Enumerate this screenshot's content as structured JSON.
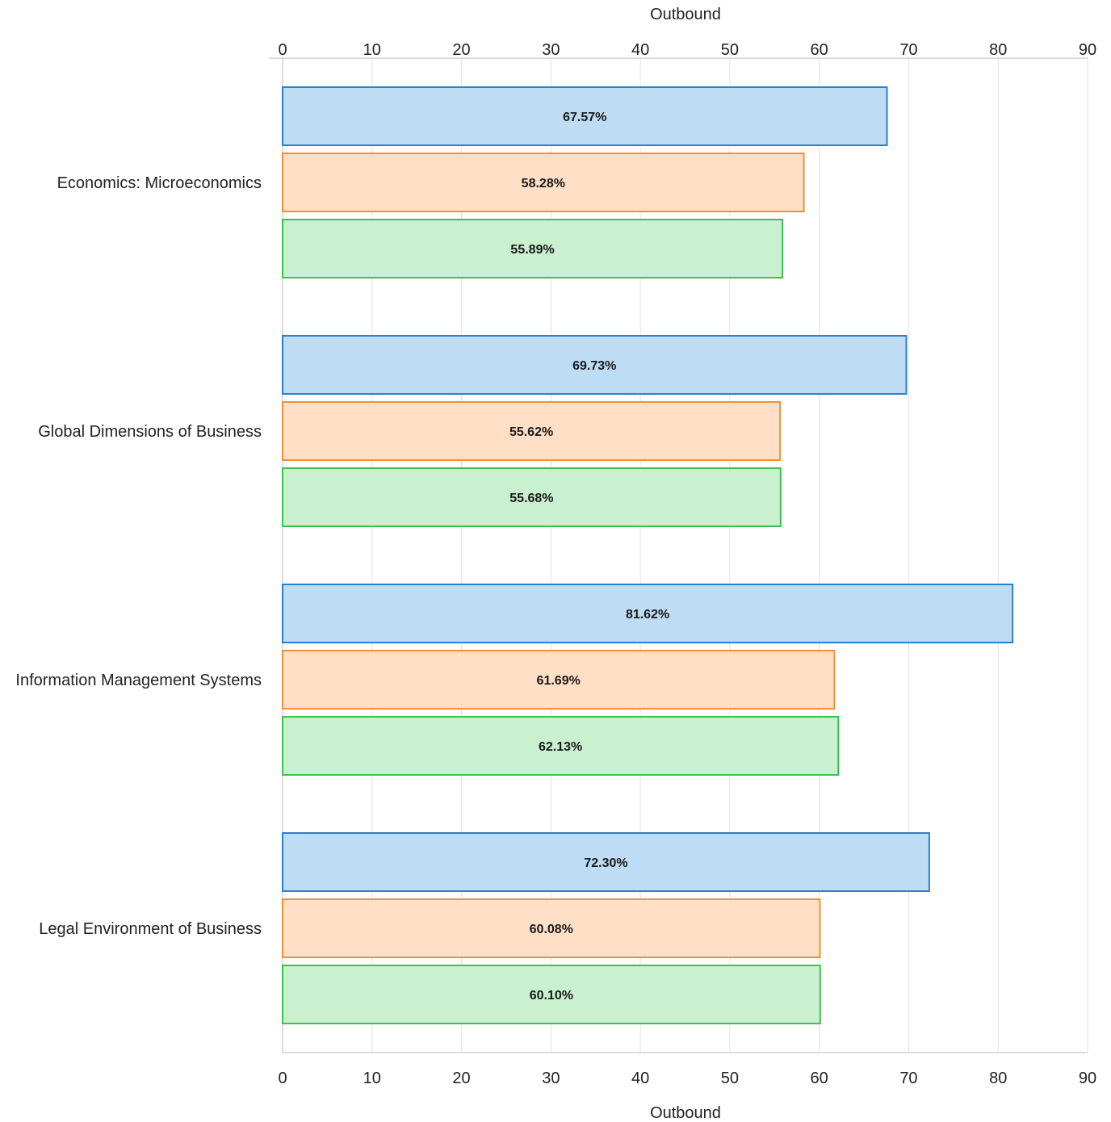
{
  "chart_data": {
    "type": "bar",
    "orientation": "horizontal",
    "categories": [
      "Economics: Microeconomics",
      "Global Dimensions of Business",
      "Information Management Systems",
      "Legal Environment of Business"
    ],
    "series": [
      {
        "values": [
          67.57,
          69.73,
          81.62,
          72.3
        ],
        "labels": [
          "67.57%",
          "69.73%",
          "81.62%",
          "72.30%"
        ],
        "fill": "#bfdcf5",
        "stroke": "#2a7fd0"
      },
      {
        "values": [
          58.28,
          55.62,
          61.69,
          60.08
        ],
        "labels": [
          "58.28%",
          "55.62%",
          "61.69%",
          "60.08%"
        ],
        "fill": "#ffdfc6",
        "stroke": "#f0913a"
      },
      {
        "values": [
          55.89,
          55.68,
          62.13,
          60.1
        ],
        "labels": [
          "55.89%",
          "55.68%",
          "62.13%",
          "60.10%"
        ],
        "fill": "#c9f0cf",
        "stroke": "#3cc24f"
      }
    ],
    "xlabel_top": "Outbound",
    "xlabel_bottom": "Outbound",
    "xlim": [
      0,
      90
    ],
    "xticks": [
      "0",
      "10",
      "20",
      "30",
      "40",
      "50",
      "60",
      "70",
      "80",
      "90"
    ],
    "grid": true,
    "legend": "none"
  }
}
